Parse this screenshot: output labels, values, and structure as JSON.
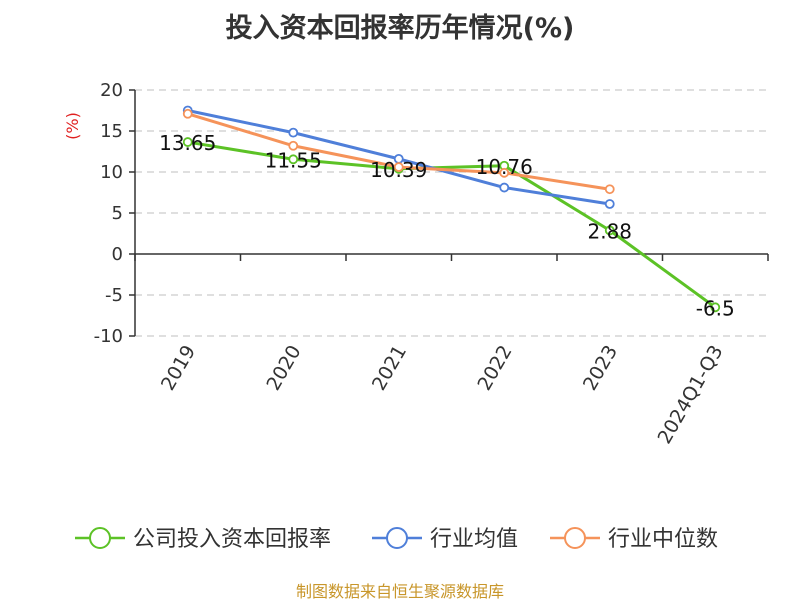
{
  "chart_data": {
    "type": "line",
    "title": "投入资本回报率历年情况(%)",
    "ylabel": "(%)",
    "ylim": [
      -10,
      20
    ],
    "yticks": [
      20,
      15,
      10,
      5,
      0,
      -5,
      -10
    ],
    "grid": true,
    "legend_position": "bottom",
    "categories": [
      "2019",
      "2020",
      "2021",
      "2022",
      "2023",
      "2024Q1-Q3"
    ],
    "series": [
      {
        "name": "公司投入资本回报率",
        "color": "#5cc226",
        "values": [
          13.65,
          11.55,
          10.39,
          10.76,
          2.88,
          -6.5
        ],
        "labels": [
          "13.65",
          "11.55",
          "10.39",
          "10.76",
          "2.88",
          "-6.5"
        ]
      },
      {
        "name": "行业均值",
        "color": "#4f7fd9",
        "values": [
          17.5,
          14.8,
          11.6,
          8.1,
          6.1,
          null
        ]
      },
      {
        "name": "行业中位数",
        "color": "#f5935a",
        "values": [
          17.1,
          13.2,
          10.6,
          9.9,
          7.9,
          null
        ]
      }
    ]
  },
  "source": "制图数据来自恒生聚源数据库"
}
